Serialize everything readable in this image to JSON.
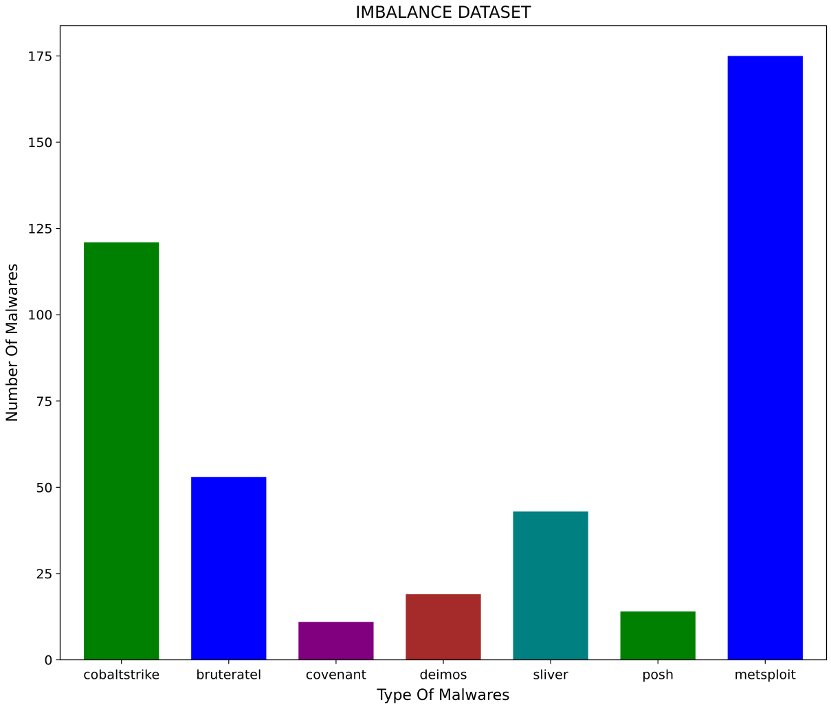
{
  "chart_data": {
    "type": "bar",
    "title": "IMBALANCE DATASET",
    "xlabel": "Type Of Malwares",
    "ylabel": "Number Of Malwares",
    "categories": [
      "cobaltstrike",
      "bruteratel",
      "covenant",
      "deimos",
      "sliver",
      "posh",
      "metsploit"
    ],
    "values": [
      121,
      53,
      11,
      19,
      43,
      14,
      175
    ],
    "colors": [
      "#008000",
      "#0000ff",
      "#800080",
      "#a52a2a",
      "#008080",
      "#008000",
      "#0000ff"
    ],
    "ylim": [
      0,
      183.75
    ],
    "yticks": [
      0,
      25,
      50,
      75,
      100,
      125,
      150,
      175
    ],
    "grid": false,
    "legend": "none"
  }
}
